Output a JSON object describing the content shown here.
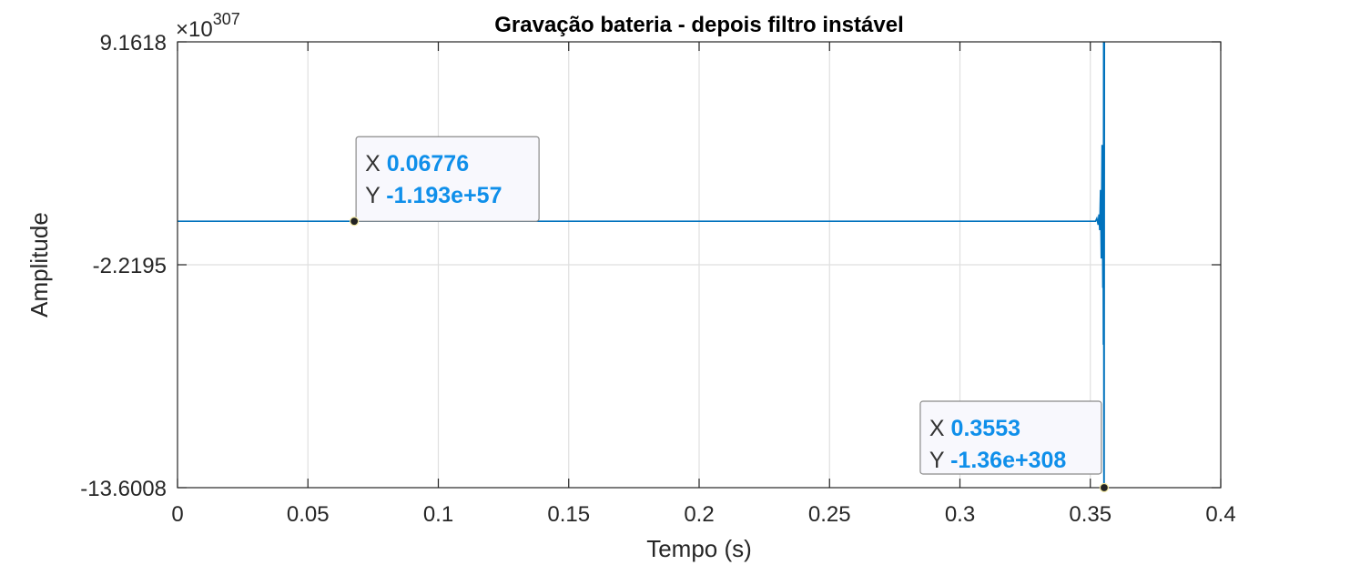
{
  "chart_data": {
    "type": "line",
    "title": "Gravação bateria - depois filtro instável",
    "xlabel": "Tempo (s)",
    "ylabel": "Amplitude",
    "exponent_label": "×10",
    "exponent_power": "307",
    "xlim": [
      0,
      0.4
    ],
    "ylim": [
      -13.6008,
      9.1618
    ],
    "x_ticks": [
      0,
      0.05,
      0.1,
      0.15,
      0.2,
      0.25,
      0.3,
      0.35,
      0.4
    ],
    "x_tick_labels": [
      "0",
      "0.05",
      "0.1",
      "0.15",
      "0.2",
      "0.25",
      "0.3",
      "0.35",
      "0.4"
    ],
    "y_ticks": [
      -13.6008,
      -2.2195,
      9.1618
    ],
    "y_tick_labels": [
      "-13.6008",
      "-2.2195",
      "9.1618"
    ],
    "grid": true,
    "line_color": "#0072bd",
    "series": [
      {
        "x": [
          0,
          0.06776,
          0.352,
          0.3525,
          0.353,
          0.3533,
          0.3536,
          0.3539,
          0.3542,
          0.3545,
          0.3548,
          0.3549,
          0.355,
          0.3551,
          0.3552,
          0.3553,
          0.3554,
          0.3555
        ],
        "y": [
          0,
          0,
          0,
          0.15,
          -0.18,
          0.35,
          -0.45,
          1.6,
          -1.9,
          3.9,
          -3.4,
          0.6,
          -6.3,
          9.1618,
          -13.6008,
          -13.6008,
          9.1618,
          9.1618
        ]
      }
    ],
    "datatips": [
      {
        "x_key": "X",
        "x_text": "0.06776",
        "y_key": "Y",
        "y_text": "-1.193e+57",
        "x": 0.06776,
        "y": 0
      },
      {
        "x_key": "X",
        "x_text": "0.3553",
        "y_key": "Y",
        "y_text": "-1.36e+308",
        "x": 0.3553,
        "y": -13.6008
      }
    ]
  }
}
